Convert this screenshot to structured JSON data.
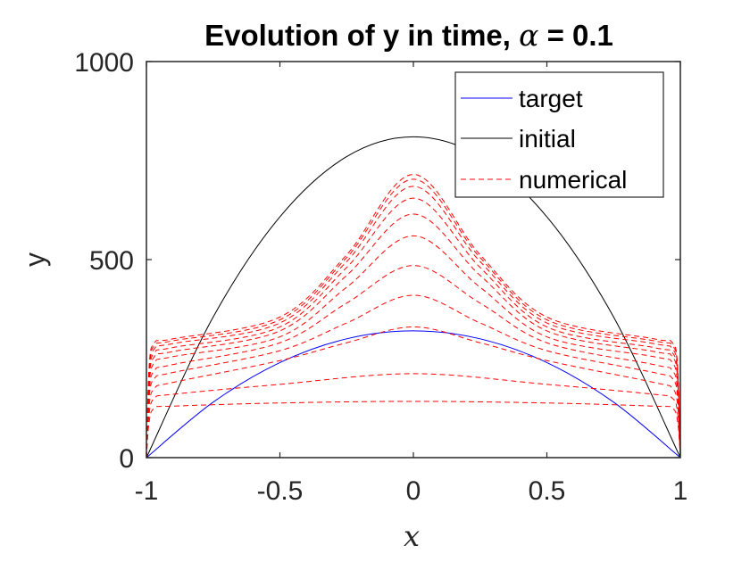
{
  "chart_data": {
    "type": "line",
    "title": "Evolution of y in time, α = 0.1",
    "title_parts": {
      "text": "Evolution of y in time, ",
      "symbol": "α",
      "suffix": " = 0.1"
    },
    "xlabel": "x",
    "ylabel": "y",
    "xlim": [
      -1,
      1
    ],
    "ylim": [
      0,
      1000
    ],
    "x_ticks": [
      -1,
      -0.5,
      0,
      0.5,
      1
    ],
    "x_tick_labels": [
      "-1",
      "-0.5",
      "0",
      "0.5",
      "1"
    ],
    "y_ticks": [
      0,
      500,
      1000
    ],
    "y_tick_labels": [
      "0",
      "500",
      "1000"
    ],
    "grid": false,
    "legend_position": "top-right",
    "legend": [
      "target",
      "initial",
      "numerical"
    ],
    "series": [
      {
        "name": "target",
        "color": "#0000ff",
        "style": "solid",
        "x": [
          -1,
          -0.75,
          -0.5,
          -0.25,
          0,
          0.25,
          0.5,
          0.75,
          1
        ],
        "y": [
          0,
          140,
          240,
          300,
          320,
          300,
          240,
          140,
          0
        ]
      },
      {
        "name": "initial",
        "color": "#000000",
        "style": "solid",
        "x": [
          -1,
          -0.75,
          -0.5,
          -0.25,
          0,
          0.25,
          0.5,
          0.75,
          1
        ],
        "y": [
          0,
          355,
          608,
          760,
          810,
          760,
          608,
          355,
          0
        ]
      },
      {
        "name": "numerical",
        "color": "#ff0000",
        "style": "dashed",
        "curves": [
          {
            "x": [
              -1,
              -0.99,
              -0.97,
              -0.9,
              -0.5,
              0,
              0.5,
              0.9,
              0.97,
              0.99,
              1
            ],
            "y": [
              0,
              90,
              125,
              130,
              138,
              142,
              138,
              130,
              125,
              90,
              0
            ]
          },
          {
            "x": [
              -1,
              -0.99,
              -0.97,
              -0.9,
              -0.5,
              0,
              0.5,
              0.9,
              0.97,
              0.99,
              1
            ],
            "y": [
              0,
              110,
              150,
              160,
              185,
              212,
              185,
              160,
              150,
              110,
              0
            ]
          },
          {
            "x": [
              -1,
              -0.99,
              -0.97,
              -0.9,
              -0.5,
              -0.25,
              0,
              0.25,
              0.5,
              0.9,
              0.97,
              0.99,
              1
            ],
            "y": [
              0,
              130,
              175,
              190,
              245,
              290,
              330,
              290,
              245,
              190,
              175,
              130,
              0
            ]
          },
          {
            "x": [
              -1,
              -0.99,
              -0.97,
              -0.9,
              -0.5,
              -0.25,
              0,
              0.25,
              0.5,
              0.9,
              0.97,
              0.99,
              1
            ],
            "y": [
              0,
              150,
              200,
              215,
              270,
              340,
              410,
              340,
              270,
              215,
              200,
              150,
              0
            ]
          },
          {
            "x": [
              -1,
              -0.99,
              -0.97,
              -0.9,
              -0.5,
              -0.25,
              0,
              0.25,
              0.5,
              0.9,
              0.97,
              0.99,
              1
            ],
            "y": [
              0,
              165,
              220,
              235,
              290,
              390,
              485,
              390,
              290,
              235,
              220,
              165,
              0
            ]
          },
          {
            "x": [
              -1,
              -0.99,
              -0.97,
              -0.9,
              -0.5,
              -0.25,
              0,
              0.25,
              0.5,
              0.9,
              0.97,
              0.99,
              1
            ],
            "y": [
              0,
              180,
              240,
              255,
              305,
              430,
              560,
              430,
              305,
              255,
              240,
              180,
              0
            ]
          },
          {
            "x": [
              -1,
              -0.99,
              -0.97,
              -0.9,
              -0.5,
              -0.25,
              0,
              0.25,
              0.5,
              0.9,
              0.97,
              0.99,
              1
            ],
            "y": [
              0,
              195,
              255,
              268,
              320,
              460,
              615,
              460,
              320,
              268,
              255,
              195,
              0
            ]
          },
          {
            "x": [
              -1,
              -0.99,
              -0.97,
              -0.9,
              -0.5,
              -0.25,
              0,
              0.25,
              0.5,
              0.9,
              0.97,
              0.99,
              1
            ],
            "y": [
              0,
              205,
              265,
              278,
              330,
              480,
              655,
              480,
              330,
              278,
              265,
              205,
              0
            ]
          },
          {
            "x": [
              -1,
              -0.99,
              -0.97,
              -0.9,
              -0.5,
              -0.25,
              0,
              0.25,
              0.5,
              0.9,
              0.97,
              0.99,
              1
            ],
            "y": [
              0,
              215,
              275,
              288,
              340,
              495,
              685,
              495,
              340,
              288,
              275,
              215,
              0
            ]
          },
          {
            "x": [
              -1,
              -0.99,
              -0.97,
              -0.9,
              -0.5,
              -0.25,
              0,
              0.25,
              0.5,
              0.9,
              0.97,
              0.99,
              1
            ],
            "y": [
              0,
              222,
              283,
              295,
              348,
              505,
              703,
              505,
              348,
              295,
              283,
              222,
              0
            ]
          },
          {
            "x": [
              -1,
              -0.99,
              -0.97,
              -0.9,
              -0.5,
              -0.25,
              0,
              0.25,
              0.5,
              0.9,
              0.97,
              0.99,
              1
            ],
            "y": [
              0,
              228,
              290,
              300,
              355,
              512,
              715,
              512,
              355,
              300,
              290,
              228,
              0
            ]
          }
        ]
      }
    ]
  }
}
